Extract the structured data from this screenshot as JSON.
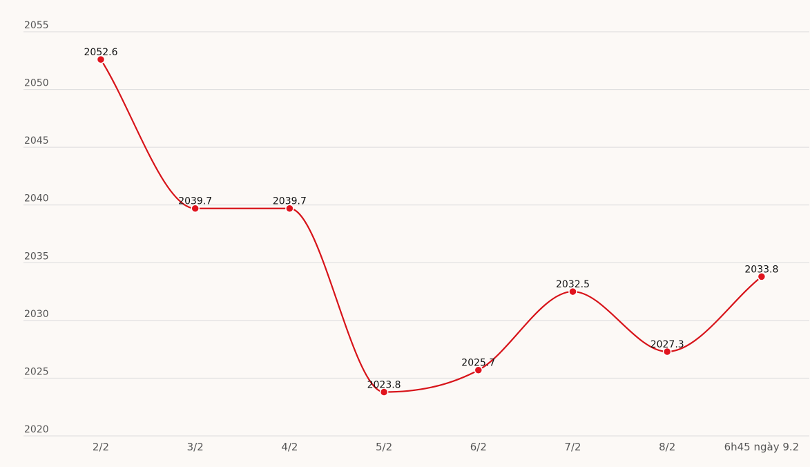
{
  "chart_data": {
    "type": "line",
    "categories": [
      "2/2",
      "3/2",
      "4/2",
      "5/2",
      "6/2",
      "7/2",
      "8/2",
      "6h45 ngày 9.2"
    ],
    "series": [
      {
        "values": [
          2052.6,
          2039.7,
          2039.7,
          2023.8,
          2025.7,
          2032.5,
          2027.3,
          2033.8
        ]
      }
    ],
    "data_labels": [
      "2052.6",
      "2039.7",
      "2039.7",
      "2023.8",
      "2025.7",
      "2032.5",
      "2027.3",
      "2033.8"
    ],
    "y_ticks": [
      "2020",
      "2025",
      "2030",
      "2035",
      "2040",
      "2045",
      "2050",
      "2055"
    ],
    "ylim": [
      2020,
      2055
    ],
    "grid": true,
    "colors": {
      "line": "#d7141a",
      "point": "#e0141e",
      "point_stroke": "#ffffff",
      "grid": "#dcdcdc",
      "background": "#fcf9f6"
    }
  }
}
